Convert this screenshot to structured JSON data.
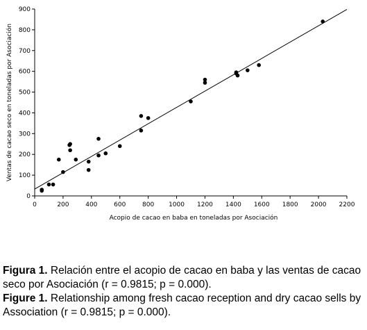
{
  "chart_data": {
    "type": "scatter",
    "title": "",
    "xlabel": "Acopio de cacao en baba en toneladas por Asociación",
    "ylabel": "Ventas de cacao seco en toneladas por Asociación",
    "xlim": [
      0,
      2200
    ],
    "ylim": [
      0,
      900
    ],
    "x_ticks": [
      "0",
      "200",
      "400",
      "600",
      "800",
      "1000",
      "1200",
      "1400",
      "1600",
      "1800",
      "2000",
      "2200"
    ],
    "y_ticks": [
      "0",
      "100",
      "200",
      "300",
      "400",
      "500",
      "600",
      "700",
      "800",
      "900"
    ],
    "grid": false,
    "legend": "none",
    "series": [
      {
        "x": [
          50,
          50,
          100,
          130,
          170,
          200,
          245,
          250,
          250,
          290,
          380,
          380,
          450,
          450,
          500,
          600,
          750,
          750,
          800,
          1100,
          1200,
          1200,
          1420,
          1420,
          1430,
          1500,
          1580,
          2030
        ],
        "y": [
          30,
          25,
          55,
          55,
          175,
          115,
          245,
          250,
          220,
          175,
          165,
          125,
          195,
          275,
          205,
          240,
          385,
          315,
          375,
          455,
          560,
          545,
          590,
          595,
          580,
          605,
          630,
          840
        ]
      }
    ],
    "trendline": {
      "x": [
        0,
        2200
      ],
      "y": [
        33,
        898
      ]
    }
  },
  "caption": {
    "es_label": "Figura 1.",
    "es_text": " Relación entre el acopio de cacao en baba y las ventas de cacao seco por Asociación (r = 0.9815; p = 0.000).",
    "en_label": "Figure 1.",
    "en_text": " Relationship among fresh cacao reception and dry cacao sells by Association (r = 0.9815; p = 0.000)."
  }
}
